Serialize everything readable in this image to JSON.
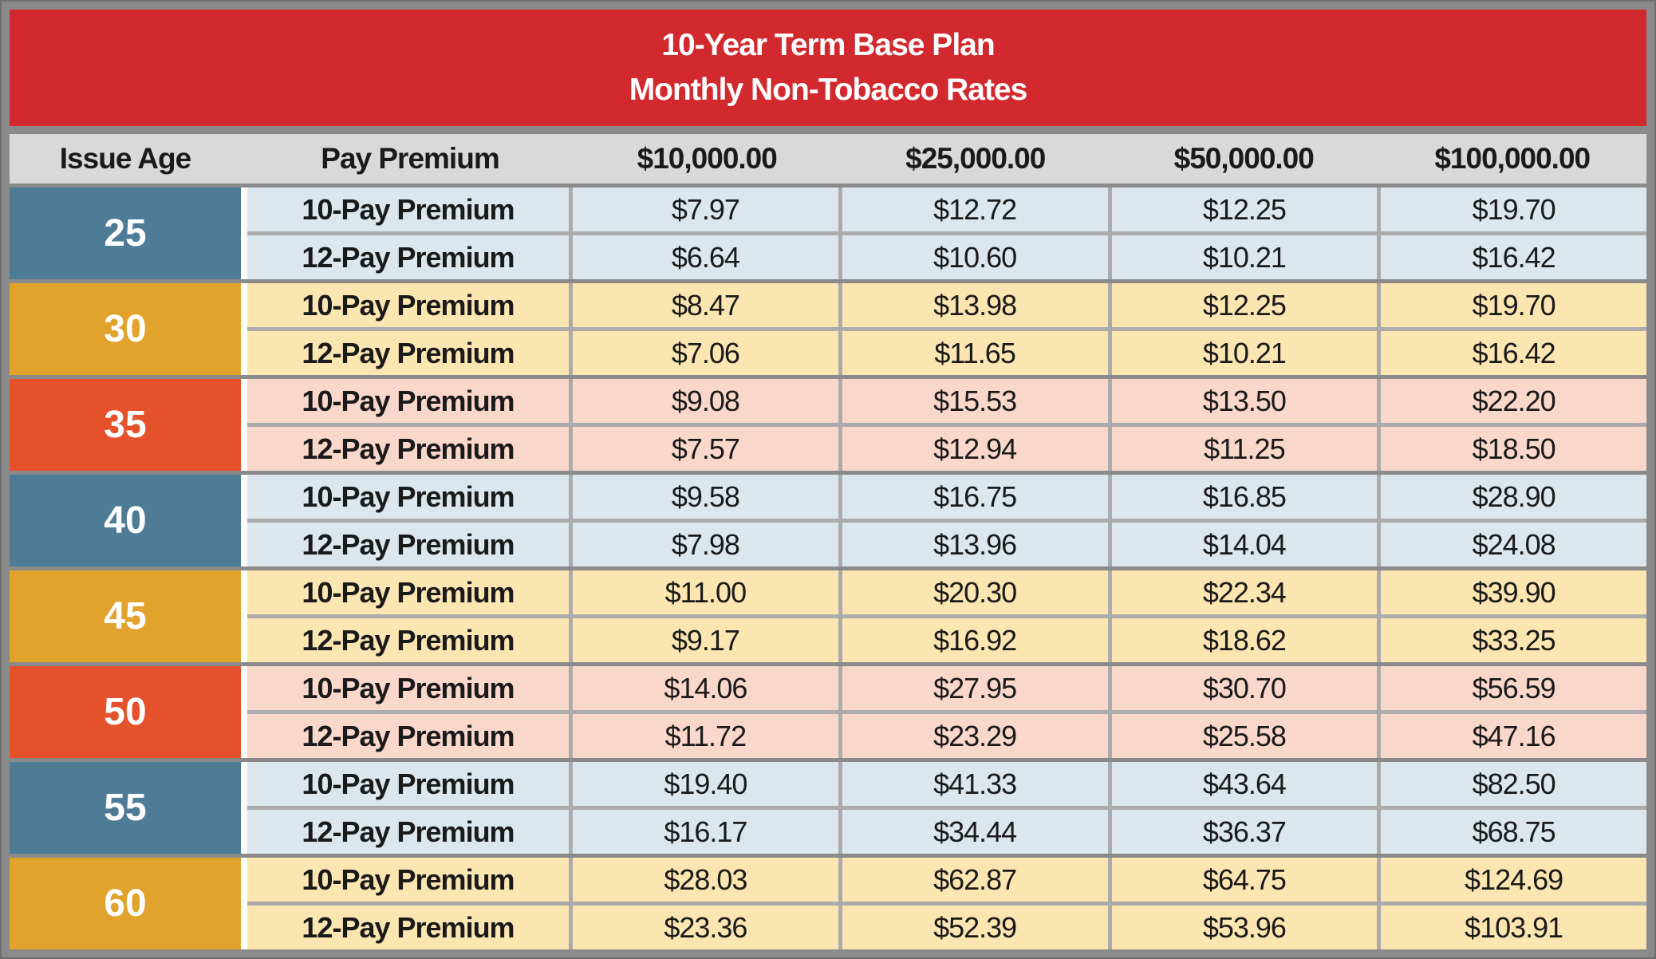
{
  "title": {
    "line1": "10-Year Term Base Plan",
    "line2": "Monthly Non-Tobacco Rates"
  },
  "columns": [
    "Issue Age",
    "Pay Premium",
    "$10,000.00",
    "$25,000.00",
    "$50,000.00",
    "$100,000.00"
  ],
  "colors": {
    "banner_red": "#d2292e",
    "header_gray": "#d9d9d9",
    "frame_gray": "#8a8a8a",
    "grid_gray": "#ababab",
    "steel_blue": "#4e7c96",
    "gold": "#e2a32d",
    "orange_red": "#e5512b",
    "tint_blue": "#dbe7ec",
    "tint_gold": "#fbe5b1",
    "tint_pink": "#fad7cb",
    "text_dark": "#1a1a1a",
    "white": "#ffffff"
  },
  "blocks": [
    {
      "age": "25",
      "rows": [
        {
          "label": "10-Pay Premium",
          "values": [
            "$7.97",
            "$12.72",
            "$12.25",
            "$19.70"
          ]
        },
        {
          "label": "12-Pay Premium",
          "values": [
            "$6.64",
            "$10.60",
            "$10.21",
            "$16.42"
          ]
        }
      ]
    },
    {
      "age": "30",
      "rows": [
        {
          "label": "10-Pay Premium",
          "values": [
            "$8.47",
            "$13.98",
            "$12.25",
            "$19.70"
          ]
        },
        {
          "label": "12-Pay Premium",
          "values": [
            "$7.06",
            "$11.65",
            "$10.21",
            "$16.42"
          ]
        }
      ]
    },
    {
      "age": "35",
      "rows": [
        {
          "label": "10-Pay Premium",
          "values": [
            "$9.08",
            "$15.53",
            "$13.50",
            "$22.20"
          ]
        },
        {
          "label": "12-Pay Premium",
          "values": [
            "$7.57",
            "$12.94",
            "$11.25",
            "$18.50"
          ]
        }
      ]
    },
    {
      "age": "40",
      "rows": [
        {
          "label": "10-Pay Premium",
          "values": [
            "$9.58",
            "$16.75",
            "$16.85",
            "$28.90"
          ]
        },
        {
          "label": "12-Pay Premium",
          "values": [
            "$7.98",
            "$13.96",
            "$14.04",
            "$24.08"
          ]
        }
      ]
    },
    {
      "age": "45",
      "rows": [
        {
          "label": "10-Pay Premium",
          "values": [
            "$11.00",
            "$20.30",
            "$22.34",
            "$39.90"
          ]
        },
        {
          "label": "12-Pay Premium",
          "values": [
            "$9.17",
            "$16.92",
            "$18.62",
            "$33.25"
          ]
        }
      ]
    },
    {
      "age": "50",
      "rows": [
        {
          "label": "10-Pay Premium",
          "values": [
            "$14.06",
            "$27.95",
            "$30.70",
            "$56.59"
          ]
        },
        {
          "label": "12-Pay Premium",
          "values": [
            "$11.72",
            "$23.29",
            "$25.58",
            "$47.16"
          ]
        }
      ]
    },
    {
      "age": "55",
      "rows": [
        {
          "label": "10-Pay Premium",
          "values": [
            "$19.40",
            "$41.33",
            "$43.64",
            "$82.50"
          ]
        },
        {
          "label": "12-Pay Premium",
          "values": [
            "$16.17",
            "$34.44",
            "$36.37",
            "$68.75"
          ]
        }
      ]
    },
    {
      "age": "60",
      "rows": [
        {
          "label": "10-Pay Premium",
          "values": [
            "$28.03",
            "$62.87",
            "$64.75",
            "$124.69"
          ]
        },
        {
          "label": "12-Pay Premium",
          "values": [
            "$23.36",
            "$52.39",
            "$53.96",
            "$103.91"
          ]
        }
      ]
    }
  ],
  "chart_data": {
    "type": "table",
    "title": "10-Year Term Base Plan — Monthly Non-Tobacco Rates",
    "columns": [
      "Issue Age",
      "Pay Premium",
      "$10,000.00",
      "$25,000.00",
      "$50,000.00",
      "$100,000.00"
    ],
    "rows": [
      [
        25,
        "10-Pay Premium",
        7.97,
        12.72,
        12.25,
        19.7
      ],
      [
        25,
        "12-Pay Premium",
        6.64,
        10.6,
        10.21,
        16.42
      ],
      [
        30,
        "10-Pay Premium",
        8.47,
        13.98,
        12.25,
        19.7
      ],
      [
        30,
        "12-Pay Premium",
        7.06,
        11.65,
        10.21,
        16.42
      ],
      [
        35,
        "10-Pay Premium",
        9.08,
        15.53,
        13.5,
        22.2
      ],
      [
        35,
        "12-Pay Premium",
        7.57,
        12.94,
        11.25,
        18.5
      ],
      [
        40,
        "10-Pay Premium",
        9.58,
        16.75,
        16.85,
        28.9
      ],
      [
        40,
        "12-Pay Premium",
        7.98,
        13.96,
        14.04,
        24.08
      ],
      [
        45,
        "10-Pay Premium",
        11.0,
        20.3,
        22.34,
        39.9
      ],
      [
        45,
        "12-Pay Premium",
        9.17,
        16.92,
        18.62,
        33.25
      ],
      [
        50,
        "10-Pay Premium",
        14.06,
        27.95,
        30.7,
        56.59
      ],
      [
        50,
        "12-Pay Premium",
        11.72,
        23.29,
        25.58,
        47.16
      ],
      [
        55,
        "10-Pay Premium",
        19.4,
        41.33,
        43.64,
        82.5
      ],
      [
        55,
        "12-Pay Premium",
        16.17,
        34.44,
        36.37,
        68.75
      ],
      [
        60,
        "10-Pay Premium",
        28.03,
        62.87,
        64.75,
        124.69
      ],
      [
        60,
        "12-Pay Premium",
        23.36,
        52.39,
        53.96,
        103.91
      ]
    ]
  }
}
